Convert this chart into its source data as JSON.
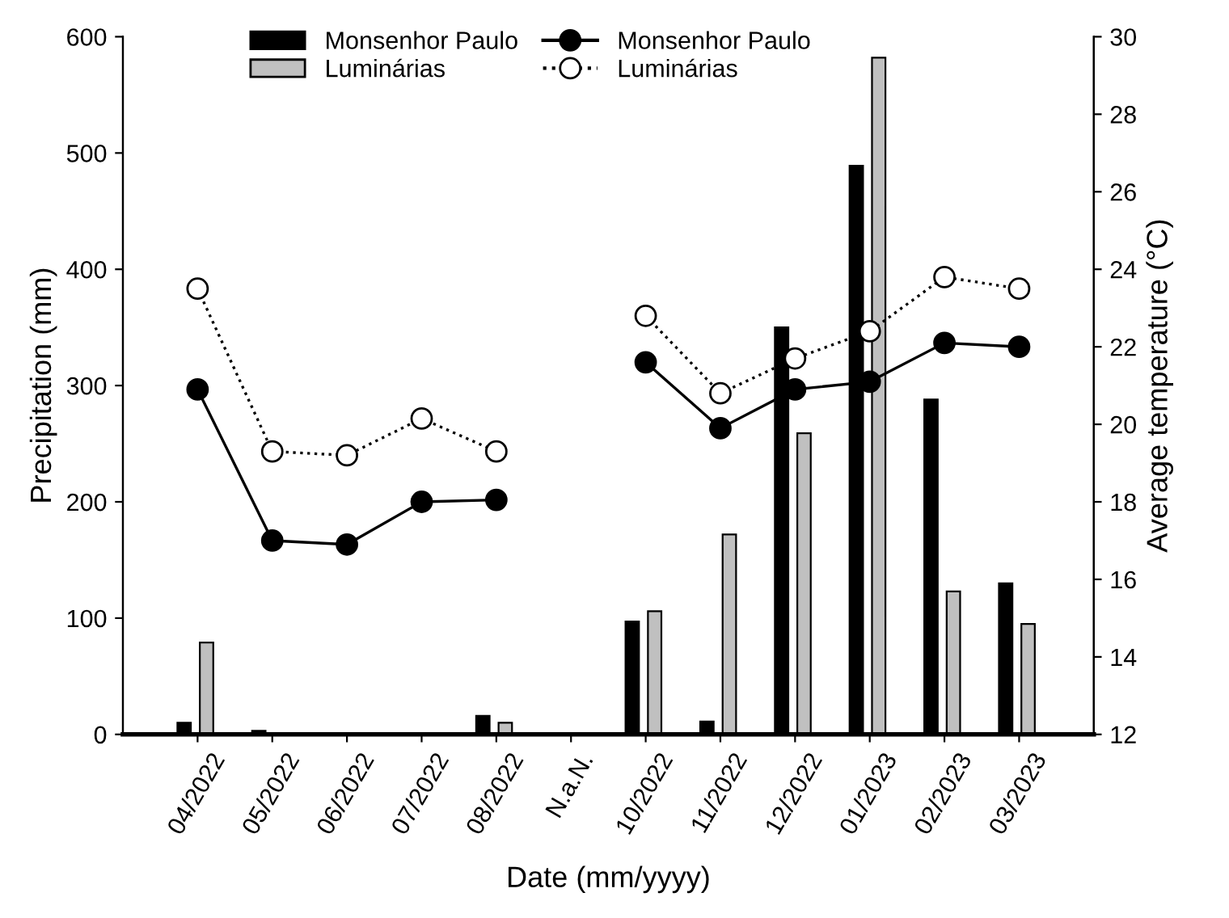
{
  "chart_data": {
    "type": "bar",
    "xlabel": "Date (mm/yyyy)",
    "ylabel": "Precipitation (mm)",
    "y2label": "Average temperature (°C)",
    "categories": [
      "04/2022",
      "05/2022",
      "06/2022",
      "07/2022",
      "08/2022",
      "N.a.N.",
      "10/2022",
      "11/2022",
      "12/2022",
      "01/2023",
      "02/2023",
      "03/2023"
    ],
    "series": [
      {
        "name": "Monsenhor Paulo",
        "color": "#000000",
        "values": [
          10,
          3,
          0,
          0,
          16,
          null,
          97,
          11,
          350,
          489,
          288,
          130
        ]
      },
      {
        "name": "Luminárias",
        "color": "#c0c0c0",
        "values": [
          79,
          0,
          0,
          0,
          10,
          null,
          106,
          172,
          259,
          582,
          123,
          95
        ]
      },
      {
        "name": "Monsenhor Paulo",
        "type": "line",
        "axis": "y2",
        "color": "#000000",
        "marker": "circle",
        "line_style": "solid",
        "values": [
          20.9,
          17.0,
          16.9,
          18.0,
          18.05,
          null,
          21.6,
          19.9,
          20.9,
          21.1,
          22.1,
          22.0
        ]
      },
      {
        "name": "Luminárias",
        "type": "line",
        "axis": "y2",
        "color": "#ffffff",
        "marker": "circle",
        "line_style": "dotted",
        "values": [
          23.5,
          19.3,
          19.2,
          20.15,
          19.3,
          null,
          22.8,
          20.8,
          21.7,
          22.4,
          23.8,
          23.5
        ]
      }
    ],
    "ylim": [
      0,
      600
    ],
    "yticks": [
      0,
      100,
      200,
      300,
      400,
      500,
      600
    ],
    "y2lim": [
      12,
      30
    ],
    "y2ticks": [
      12,
      14,
      16,
      18,
      20,
      22,
      24,
      26,
      28,
      30
    ],
    "grid": false,
    "legend": "top"
  }
}
